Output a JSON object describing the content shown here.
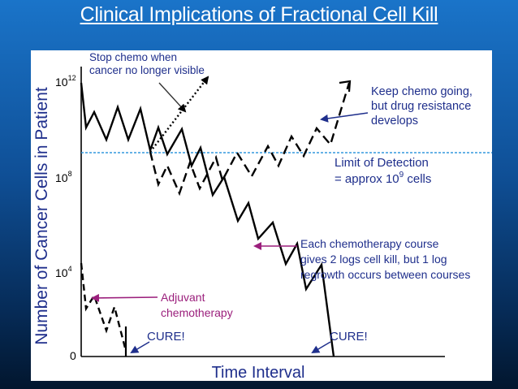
{
  "slide": {
    "title": "Clinical Implications of Fractional Cell Kill"
  },
  "axes": {
    "ylabel": "Number of Cancer Cells in Patient",
    "xlabel": "Time Interval",
    "ticks": [
      {
        "base": "10",
        "exp": "12"
      },
      {
        "base": "10",
        "exp": "8"
      },
      {
        "base": "10",
        "exp": "4"
      },
      {
        "base": "0",
        "exp": ""
      }
    ]
  },
  "annotations": {
    "stop_chemo": [
      "Stop chemo when",
      "cancer no longer visible"
    ],
    "keep_chemo": [
      "Keep chemo going,",
      "but drug resistance",
      "develops"
    ],
    "limit": {
      "line1": "Limit of Detection",
      "line2_prefix": "= approx 10",
      "line2_exp": "9",
      "line2_suffix": " cells"
    },
    "each_course": [
      "Each chemotherapy course",
      "gives 2 logs cell kill, but 1 log",
      "regrowth occurs between courses"
    ],
    "adjuvant": [
      "Adjuvant",
      "chemotherapy"
    ],
    "cure_left": "CURE!",
    "cure_right": "CURE!"
  },
  "colors": {
    "curve": "#000000",
    "annotation_blue": "#1f2f8c",
    "limit_blue": "#3399dd",
    "magenta": "#9b1f7c",
    "text_blue": "#1f2f8c"
  }
}
